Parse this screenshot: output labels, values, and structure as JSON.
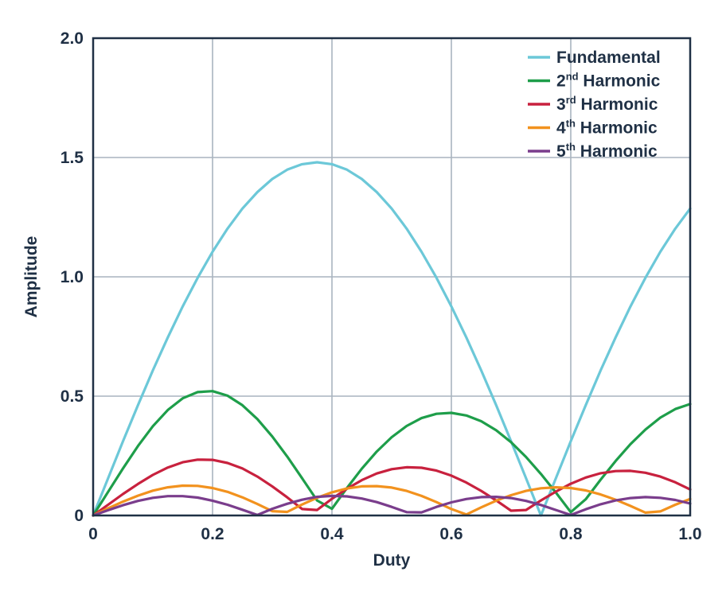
{
  "chart_data": {
    "type": "line",
    "title": "",
    "xlabel": "Duty",
    "ylabel": "Amplitude",
    "xlim": [
      0,
      1.0
    ],
    "ylim": [
      0,
      2.0
    ],
    "grid": true,
    "legend_position": "top-right",
    "x_ticks": [
      {
        "value": 0,
        "label": "0"
      },
      {
        "value": 0.2,
        "label": "0.2"
      },
      {
        "value": 0.4,
        "label": "0.4"
      },
      {
        "value": 0.6,
        "label": "0.6"
      },
      {
        "value": 0.8,
        "label": "0.8"
      },
      {
        "value": 1.0,
        "label": "1.0"
      }
    ],
    "y_ticks": [
      {
        "value": 0,
        "label": "0"
      },
      {
        "value": 0.5,
        "label": "0.5"
      },
      {
        "value": 1.0,
        "label": "1.0"
      },
      {
        "value": 1.5,
        "label": "1.5"
      },
      {
        "value": 2.0,
        "label": "2.0"
      }
    ],
    "x": [
      0,
      0.025,
      0.05,
      0.075,
      0.1,
      0.125,
      0.15,
      0.175,
      0.2,
      0.225,
      0.25,
      0.275,
      0.3,
      0.325,
      0.35,
      0.375,
      0.4,
      0.425,
      0.45,
      0.475,
      0.5,
      0.525,
      0.55,
      0.575,
      0.6,
      0.625,
      0.65,
      0.675,
      0.7,
      0.725,
      0.75,
      0.775,
      0.8,
      0.825,
      0.85,
      0.875,
      0.9,
      0.925,
      0.95,
      0.975,
      1.0
    ],
    "series": [
      {
        "name": "Fundamental",
        "name_base": "Fundamental",
        "name_sup": "",
        "color": "#6cc8d8",
        "values": [
          0.0,
          0.156,
          0.311,
          0.462,
          0.608,
          0.746,
          0.876,
          0.996,
          1.105,
          1.202,
          1.286,
          1.355,
          1.41,
          1.449,
          1.472,
          1.48,
          1.472,
          1.449,
          1.41,
          1.355,
          1.286,
          1.202,
          1.105,
          0.996,
          0.876,
          0.746,
          0.608,
          0.462,
          0.311,
          0.156,
          0.0,
          0.156,
          0.311,
          0.462,
          0.608,
          0.746,
          0.876,
          0.996,
          1.105,
          1.202,
          1.286
        ]
      },
      {
        "name": "2nd Harmonic",
        "name_base": "2",
        "name_sup": "nd",
        "color": "#1e9e4a",
        "values": [
          0.0,
          0.099,
          0.197,
          0.291,
          0.374,
          0.442,
          0.491,
          0.517,
          0.521,
          0.502,
          0.462,
          0.404,
          0.331,
          0.247,
          0.156,
          0.063,
          0.028,
          0.115,
          0.196,
          0.268,
          0.328,
          0.375,
          0.408,
          0.426,
          0.43,
          0.419,
          0.395,
          0.357,
          0.307,
          0.245,
          0.174,
          0.096,
          0.014,
          0.068,
          0.15,
          0.228,
          0.299,
          0.36,
          0.41,
          0.446,
          0.467
        ]
      },
      {
        "name": "3rd Harmonic",
        "name_base": "3",
        "name_sup": "rd",
        "color": "#c8213e",
        "values": [
          0.0,
          0.045,
          0.09,
          0.132,
          0.17,
          0.201,
          0.223,
          0.234,
          0.233,
          0.22,
          0.197,
          0.163,
          0.122,
          0.076,
          0.027,
          0.023,
          0.07,
          0.112,
          0.148,
          0.176,
          0.194,
          0.202,
          0.2,
          0.188,
          0.167,
          0.138,
          0.103,
          0.063,
          0.02,
          0.023,
          0.063,
          0.1,
          0.133,
          0.159,
          0.177,
          0.186,
          0.187,
          0.179,
          0.163,
          0.139,
          0.109
        ]
      },
      {
        "name": "4th Harmonic",
        "name_base": "4",
        "name_sup": "th",
        "color": "#f2921e",
        "values": [
          0.0,
          0.03,
          0.058,
          0.083,
          0.104,
          0.118,
          0.125,
          0.124,
          0.115,
          0.099,
          0.076,
          0.048,
          0.018,
          0.015,
          0.046,
          0.074,
          0.097,
          0.113,
          0.122,
          0.123,
          0.117,
          0.103,
          0.082,
          0.056,
          0.027,
          0.004,
          0.034,
          0.062,
          0.085,
          0.103,
          0.114,
          0.118,
          0.115,
          0.105,
          0.088,
          0.066,
          0.04,
          0.012,
          0.017,
          0.045,
          0.069
        ]
      },
      {
        "name": "5th Harmonic",
        "name_base": "5",
        "name_sup": "th",
        "color": "#7a3d8c",
        "values": [
          0.0,
          0.022,
          0.043,
          0.061,
          0.074,
          0.081,
          0.081,
          0.075,
          0.062,
          0.045,
          0.024,
          0.002,
          0.028,
          0.049,
          0.066,
          0.078,
          0.082,
          0.08,
          0.071,
          0.056,
          0.036,
          0.014,
          0.013,
          0.036,
          0.055,
          0.069,
          0.077,
          0.078,
          0.073,
          0.061,
          0.044,
          0.023,
          0.002,
          0.026,
          0.047,
          0.063,
          0.073,
          0.077,
          0.074,
          0.065,
          0.05
        ]
      }
    ]
  }
}
